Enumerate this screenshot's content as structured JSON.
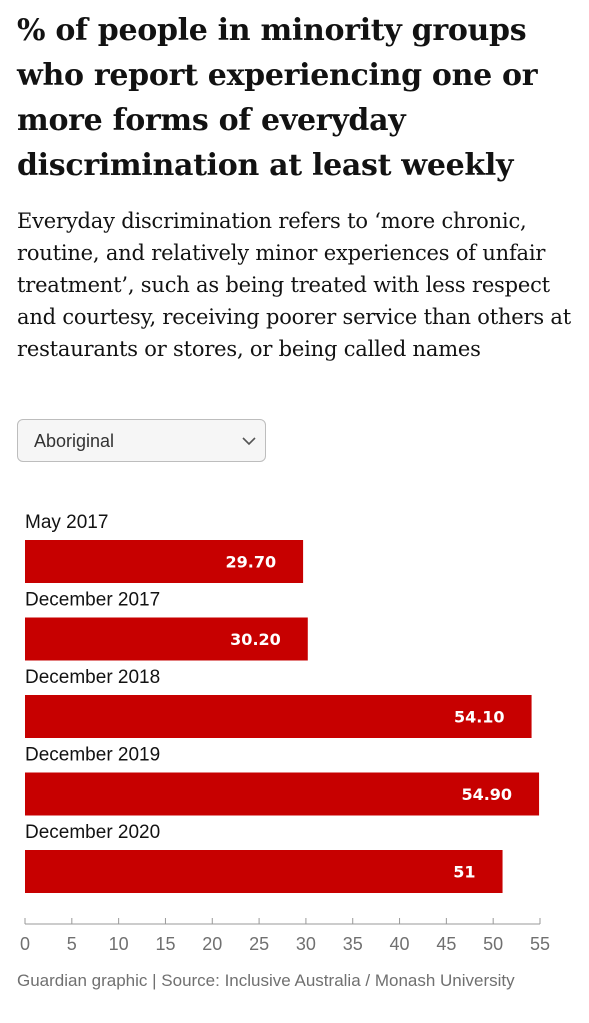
{
  "header": {
    "title": "% of people in minority groups who report experiencing one or more forms of everyday discrimination at least weekly",
    "subtitle": "Everyday discrimination refers to ‘more chronic, routine, and relatively minor experiences of unfair treatment’, such as being treated with less respect and courtesy, receiving poorer service than others at restaurants or stores, or being called names"
  },
  "filter": {
    "selected": "Aboriginal",
    "icon": "chevron-down-icon"
  },
  "chart_data": {
    "type": "bar",
    "orientation": "horizontal",
    "categories": [
      "May 2017",
      "December 2017",
      "December 2018",
      "December 2019",
      "December 2020"
    ],
    "values": [
      29.7,
      30.2,
      54.1,
      54.9,
      51
    ],
    "value_labels": [
      "29.70",
      "30.20",
      "54.10",
      "54.90",
      "51"
    ],
    "xlim": [
      0,
      55
    ],
    "xticks": [
      0,
      5,
      10,
      15,
      20,
      25,
      30,
      35,
      40,
      45,
      50,
      55
    ],
    "bar_color": "#c70000",
    "grid": false
  },
  "footer": {
    "source": "Guardian graphic | Source: Inclusive Australia / Monash University"
  }
}
